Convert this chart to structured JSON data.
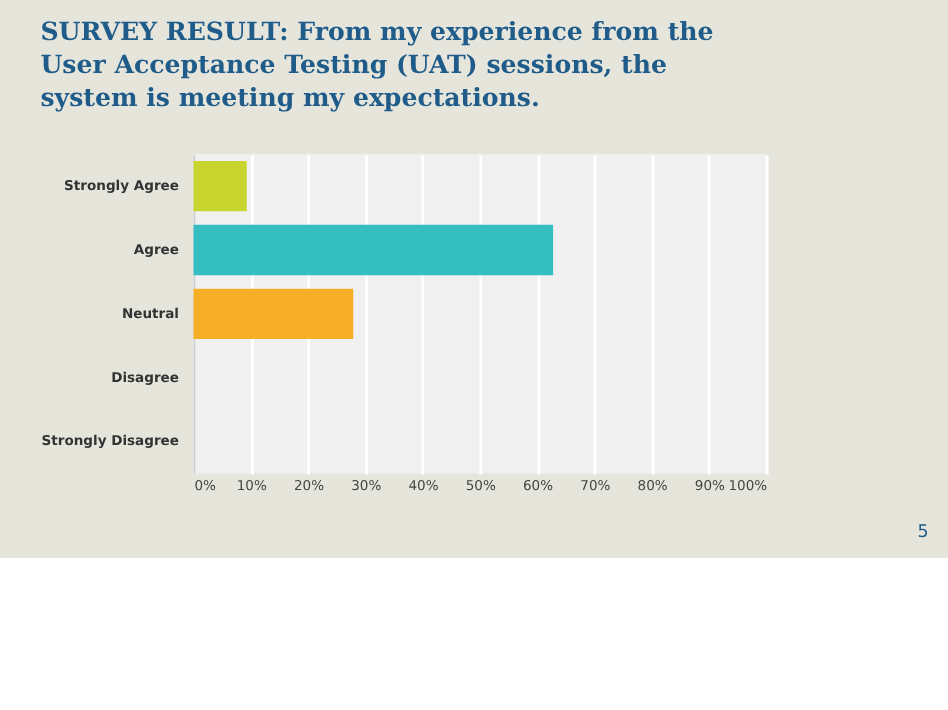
{
  "chart_data": {
    "type": "bar",
    "orientation": "horizontal",
    "title": "SURVEY RESULT:  From my experience from the User Acceptance Testing (UAT) sessions, the system is meeting my expectations.",
    "categories": [
      "Strongly Agree",
      "Agree",
      "Neutral",
      "Disagree",
      "Strongly Disagree"
    ],
    "values": [
      9.3,
      62.8,
      27.9,
      0,
      0
    ],
    "colors": [
      "#c8d52e",
      "#35bec0",
      "#f5ae25",
      "#999999",
      "#999999"
    ],
    "xlim": [
      0,
      100
    ],
    "xticks": [
      {
        "value": 0,
        "label": "0%"
      },
      {
        "value": 10,
        "label": "10%"
      },
      {
        "value": 20,
        "label": "20%"
      },
      {
        "value": 30,
        "label": "30%"
      },
      {
        "value": 40,
        "label": "40%"
      },
      {
        "value": 50,
        "label": "50%"
      },
      {
        "value": 60,
        "label": "60%"
      },
      {
        "value": 70,
        "label": "70%"
      },
      {
        "value": 80,
        "label": "80%"
      },
      {
        "value": 90,
        "label": "90%"
      },
      {
        "value": 100,
        "label": "100%"
      }
    ],
    "grid": "x",
    "annotations": [
      "5"
    ]
  }
}
